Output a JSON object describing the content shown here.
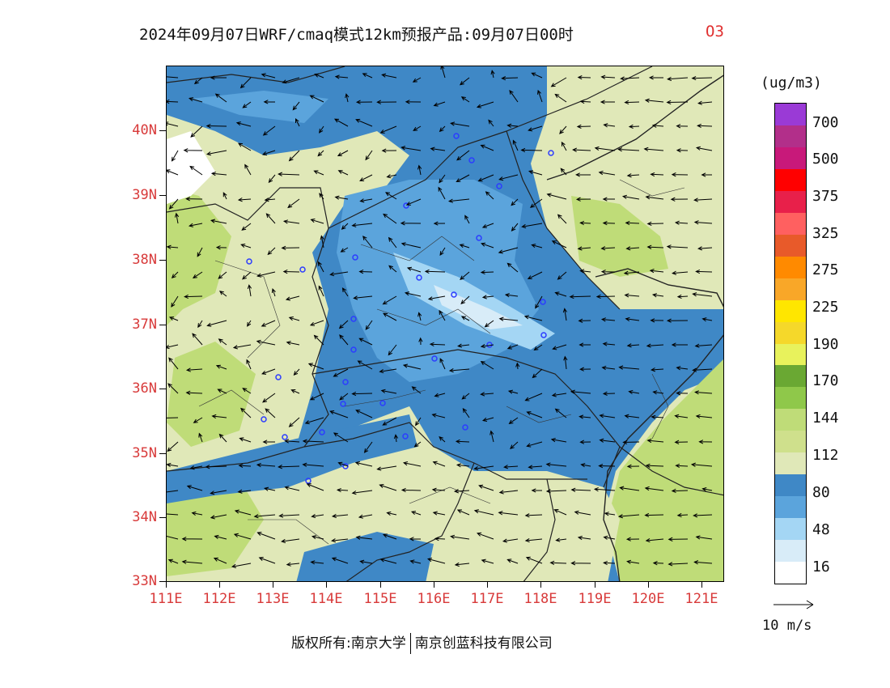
{
  "header": {
    "title": "2024年09月07日WRF/cmaq模式12km预报产品:09月07日00时",
    "species": "O3"
  },
  "map": {
    "lat_labels": [
      "40N",
      "39N",
      "38N",
      "37N",
      "36N",
      "35N",
      "34N",
      "33N"
    ],
    "lon_labels": [
      "111E",
      "112E",
      "113E",
      "114E",
      "115E",
      "116E",
      "117E",
      "118E",
      "119E",
      "120E",
      "121E"
    ],
    "extent": {
      "lon": [
        111,
        121.4
      ],
      "lat": [
        33,
        41
      ]
    }
  },
  "legend": {
    "unit": "(ug/m3)",
    "labels": [
      "700",
      "500",
      "375",
      "325",
      "275",
      "225",
      "190",
      "170",
      "144",
      "112",
      "80",
      "48",
      "16"
    ],
    "colors": [
      "#9a3ad6",
      "#b22f8a",
      "#c8197a",
      "#ff0000",
      "#e8204a",
      "#ff6060",
      "#e85a2a",
      "#ff8a00",
      "#f9a728",
      "#ffe600",
      "#f5d82a",
      "#e8f25c",
      "#6aa833",
      "#8fc84a",
      "#bfdc78",
      "#cfe08c",
      "#e0e8b8",
      "#3f88c6",
      "#5ba4dc",
      "#a4d6f4",
      "#d8ecf8",
      "#ffffff"
    ]
  },
  "wind_scale": {
    "label": "10 m/s"
  },
  "footer": {
    "left": "版权所有:南京大学",
    "right": "南京创蓝科技有限公司"
  }
}
